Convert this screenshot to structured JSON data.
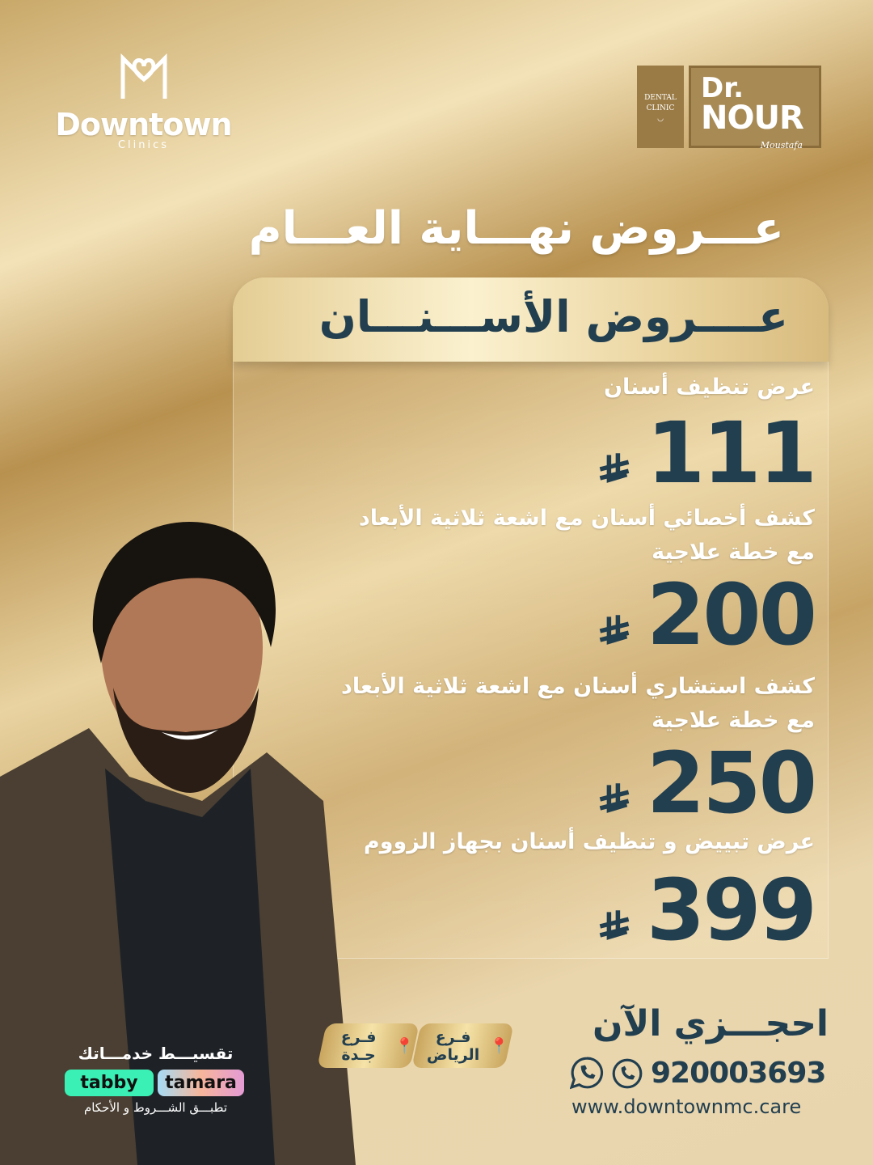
{
  "brand_left": {
    "name": "Downtown",
    "sub": "Clinics"
  },
  "brand_right": {
    "tag": "DENTAL CLINIC",
    "dr": "Dr.",
    "name": "NOUR",
    "signature": "Moustafa"
  },
  "title": "عـــروض نهـــاية العـــام",
  "section_title": "عــــروض الأســـنـــان",
  "currency_icon": "saudi-riyal-icon",
  "offers": [
    {
      "label": "عرض تنظيف أسنان",
      "price": "111"
    },
    {
      "label": "كشف أخصائي أسنان مع اشعة ثلاثية الأبعاد\nمع خطة علاجية",
      "price": "200"
    },
    {
      "label": "كشف استشاري أسنان مع اشعة ثلاثية الأبعاد\nمع خطة علاجية",
      "price": "250"
    },
    {
      "label": "عرض تبييض و تنظيف أسنان بجهاز الزووم",
      "price": "399"
    }
  ],
  "branches": [
    {
      "label": "فـرع الرياض"
    },
    {
      "label": "فـرع جـدة"
    }
  ],
  "installments": {
    "heading": "تقسيـــط خدمـــاتك",
    "tabby": "tabby",
    "tamara": "tamara",
    "terms": "تطبـــق الشـــروط و الأحكام"
  },
  "contact": {
    "cta": "احجـــزي الآن",
    "phone": "920003693",
    "website": "www.downtownmc.care"
  },
  "colors": {
    "accent": "#223f50",
    "gold": "#c9a65f"
  }
}
